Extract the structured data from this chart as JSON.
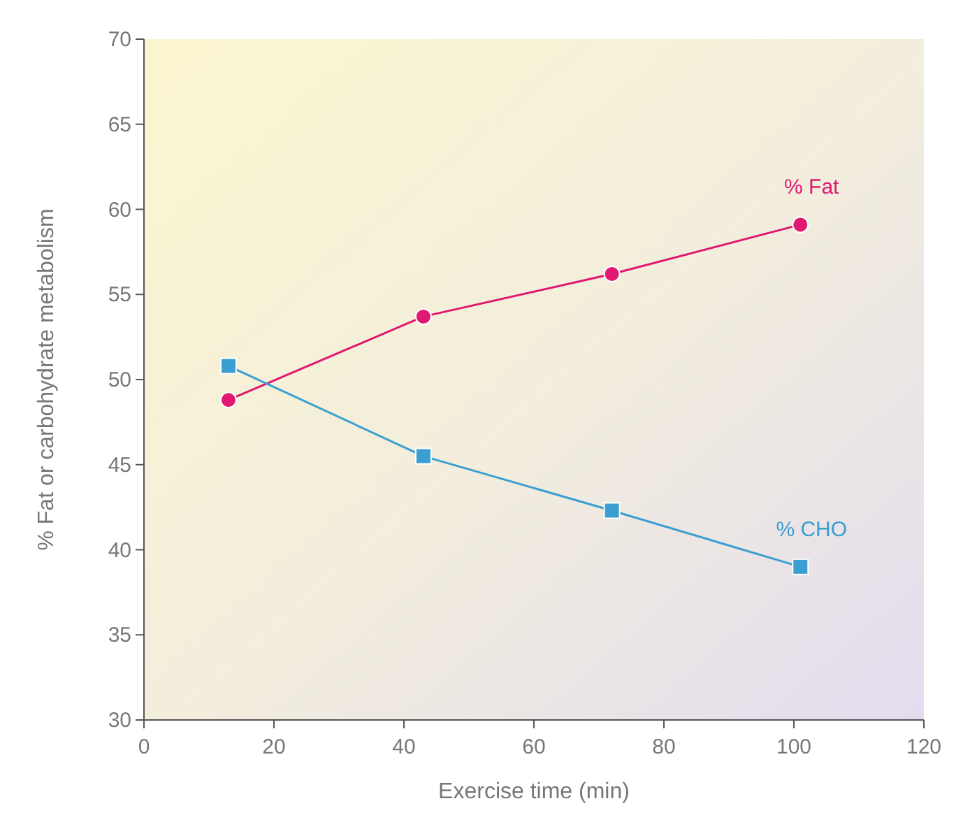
{
  "chart_data": {
    "type": "line",
    "xlabel": "Exercise time (min)",
    "ylabel": "% Fat or carbohydrate metabolism",
    "xlim": [
      0,
      120
    ],
    "xticks": [
      0,
      20,
      40,
      60,
      80,
      100,
      120
    ],
    "ylim": [
      30,
      70
    ],
    "yticks": [
      30,
      35,
      40,
      45,
      50,
      55,
      60,
      65,
      70
    ],
    "grid": false,
    "series": [
      {
        "name": "% Fat",
        "color": "#e0186f",
        "marker": "circle",
        "x": [
          13,
          43,
          72,
          101
        ],
        "values": [
          48.8,
          53.7,
          56.2,
          59.1
        ]
      },
      {
        "name": "% CHO",
        "color": "#3a9fd0",
        "marker": "square",
        "x": [
          13,
          43,
          72,
          101
        ],
        "values": [
          50.8,
          45.5,
          42.3,
          39.0
        ]
      }
    ]
  }
}
